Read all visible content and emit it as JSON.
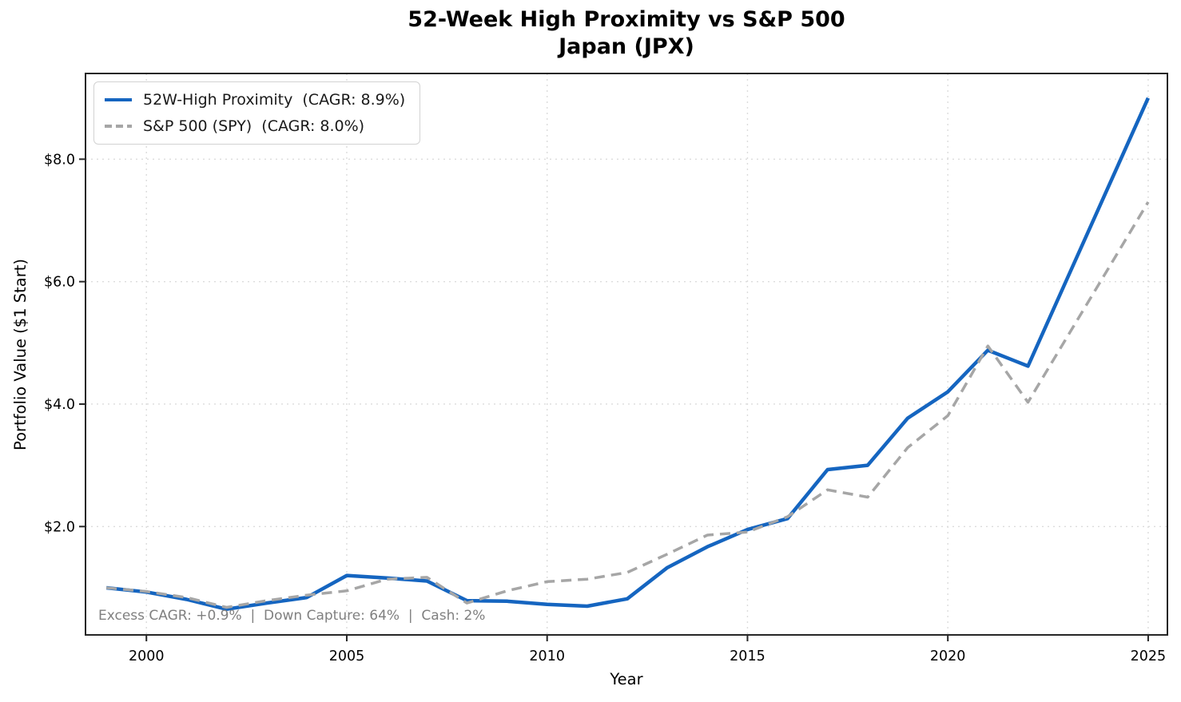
{
  "chart_data": {
    "type": "line",
    "title": "52-Week High Proximity vs S&P 500",
    "subtitle": "Japan (JPX)",
    "xlabel": "Year",
    "ylabel": "Portfolio Value ($1 Start)",
    "x": [
      1999,
      2000,
      2001,
      2002,
      2003,
      2004,
      2005,
      2006,
      2007,
      2008,
      2009,
      2010,
      2011,
      2012,
      2013,
      2014,
      2015,
      2016,
      2017,
      2018,
      2019,
      2020,
      2021,
      2022,
      2023,
      2024,
      2025
    ],
    "series": [
      {
        "name": "52W-High Proximity  (CAGR: 8.9%)",
        "color": "#1565C0",
        "line_style": "solid",
        "line_width": 4.5,
        "values": [
          1.0,
          0.93,
          0.81,
          0.65,
          0.75,
          0.84,
          1.2,
          1.16,
          1.11,
          0.79,
          0.78,
          0.73,
          0.7,
          0.82,
          1.33,
          1.67,
          1.95,
          2.13,
          2.93,
          3.0,
          3.77,
          4.2,
          4.88,
          4.62,
          6.08,
          7.54,
          9.0
        ]
      },
      {
        "name": "S&P 500 (SPY)  (CAGR: 8.0%)",
        "color": "#a6a6a6",
        "line_style": "dashed",
        "line_width": 3.5,
        "values": [
          1.0,
          0.94,
          0.84,
          0.68,
          0.79,
          0.88,
          0.95,
          1.14,
          1.17,
          0.75,
          0.95,
          1.1,
          1.14,
          1.25,
          1.55,
          1.86,
          1.91,
          2.16,
          2.6,
          2.48,
          3.29,
          3.81,
          4.95,
          4.03,
          5.12,
          6.21,
          7.3
        ]
      }
    ],
    "xticks": [
      2000,
      2005,
      2010,
      2015,
      2020,
      2025
    ],
    "yticks": [
      {
        "value": 2,
        "label": "$2.0"
      },
      {
        "value": 4,
        "label": "$4.0"
      },
      {
        "value": 6,
        "label": "$6.0"
      },
      {
        "value": 8,
        "label": "$8.0"
      }
    ],
    "xlim": [
      1998.48,
      2025.48
    ],
    "ylim": [
      0.23,
      9.4
    ],
    "grid": true,
    "legend_position": "upper-left",
    "annotation": "Excess CAGR: +0.9%  |  Down Capture: 64%  |  Cash: 2%",
    "colors": {
      "spine": "#262626",
      "gridline": "#dcdcdc",
      "annotation_text": "#808080",
      "strategy_line": "#1565C0",
      "benchmark_line": "#a6a6a6"
    }
  }
}
